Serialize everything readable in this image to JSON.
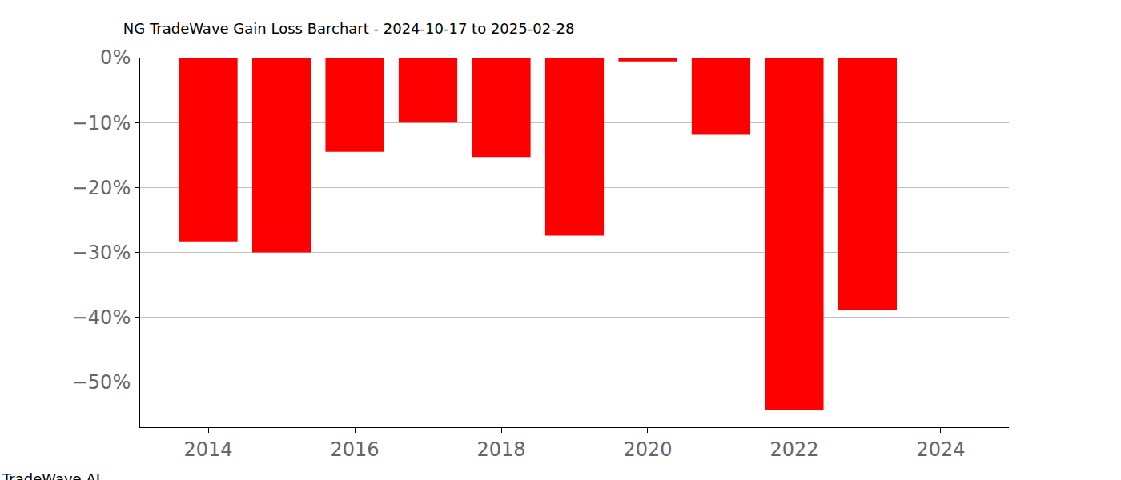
{
  "chart_data": {
    "type": "bar",
    "title": "NG TradeWave Gain Loss Barchart - 2024-10-17 to 2025-02-28",
    "annotations": [
      "TradeWave.AI"
    ],
    "x": [
      2014,
      2015,
      2016,
      2017,
      2018,
      2019,
      2020,
      2021,
      2022,
      2023
    ],
    "values": [
      -28.3,
      -30.0,
      -14.5,
      -10.0,
      -15.3,
      -27.4,
      -0.6,
      -11.9,
      -54.2,
      -38.8
    ],
    "color": "#ff0000",
    "xlim": [
      2013.07,
      2024.93
    ],
    "xticks": [
      2014,
      2016,
      2018,
      2020,
      2022,
      2024
    ],
    "ylim": [
      -56.9,
      0
    ],
    "yticks": [
      {
        "value": 0,
        "label": "0%"
      },
      {
        "value": -10,
        "label": "−10%"
      },
      {
        "value": -20,
        "label": "−20%"
      },
      {
        "value": -30,
        "label": "−30%"
      },
      {
        "value": -40,
        "label": "−40%"
      },
      {
        "value": -50,
        "label": "−50%"
      }
    ],
    "grid": true
  }
}
